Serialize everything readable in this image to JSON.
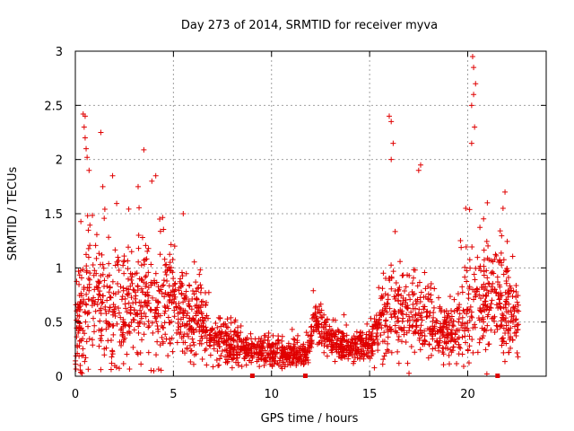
{
  "chart_data": {
    "type": "scatter",
    "title": "Day 273 of 2014, SRMTID for receiver myva",
    "xlabel": "GPS time / hours",
    "ylabel": "SRMTID / TECUs",
    "xlim": [
      0,
      24
    ],
    "ylim": [
      0,
      3
    ],
    "xticks": [
      0,
      5,
      10,
      15,
      20
    ],
    "xtick_labels": [
      "0",
      "5",
      "10",
      "15",
      "20"
    ],
    "yticks": [
      0,
      0.5,
      1,
      1.5,
      2,
      2.5,
      3
    ],
    "ytick_labels": [
      "0",
      "0.5",
      "1",
      "1.5",
      "2",
      "2.5",
      "3"
    ],
    "grid": true,
    "marker": "+",
    "series_color": "#e00000",
    "envelope": [
      {
        "x": 0.0,
        "base": 0.35,
        "spread": 0.35
      },
      {
        "x": 0.5,
        "base": 0.7,
        "spread": 0.6
      },
      {
        "x": 1.0,
        "base": 0.75,
        "spread": 0.55
      },
      {
        "x": 2.0,
        "base": 0.6,
        "spread": 0.5
      },
      {
        "x": 3.0,
        "base": 0.7,
        "spread": 0.5
      },
      {
        "x": 4.0,
        "base": 0.65,
        "spread": 0.55
      },
      {
        "x": 5.0,
        "base": 0.65,
        "spread": 0.45
      },
      {
        "x": 6.0,
        "base": 0.55,
        "spread": 0.35
      },
      {
        "x": 7.0,
        "base": 0.35,
        "spread": 0.2
      },
      {
        "x": 8.0,
        "base": 0.28,
        "spread": 0.16
      },
      {
        "x": 9.0,
        "base": 0.25,
        "spread": 0.12
      },
      {
        "x": 10.0,
        "base": 0.22,
        "spread": 0.12
      },
      {
        "x": 11.0,
        "base": 0.2,
        "spread": 0.12
      },
      {
        "x": 11.8,
        "base": 0.2,
        "spread": 0.1
      },
      {
        "x": 12.2,
        "base": 0.5,
        "spread": 0.18
      },
      {
        "x": 13.0,
        "base": 0.35,
        "spread": 0.15
      },
      {
        "x": 14.0,
        "base": 0.25,
        "spread": 0.12
      },
      {
        "x": 15.0,
        "base": 0.3,
        "spread": 0.15
      },
      {
        "x": 16.0,
        "base": 0.6,
        "spread": 0.4
      },
      {
        "x": 17.0,
        "base": 0.55,
        "spread": 0.4
      },
      {
        "x": 18.0,
        "base": 0.45,
        "spread": 0.25
      },
      {
        "x": 19.0,
        "base": 0.4,
        "spread": 0.25
      },
      {
        "x": 20.0,
        "base": 0.55,
        "spread": 0.45
      },
      {
        "x": 21.0,
        "base": 0.75,
        "spread": 0.45
      },
      {
        "x": 22.0,
        "base": 0.7,
        "spread": 0.45
      },
      {
        "x": 22.6,
        "base": 0.5,
        "spread": 0.3
      }
    ],
    "spikes": [
      {
        "x": 0.4,
        "y": 2.42
      },
      {
        "x": 0.5,
        "y": 2.4
      },
      {
        "x": 0.45,
        "y": 2.3
      },
      {
        "x": 0.5,
        "y": 2.2
      },
      {
        "x": 0.55,
        "y": 2.1
      },
      {
        "x": 0.6,
        "y": 2.02
      },
      {
        "x": 0.7,
        "y": 1.9
      },
      {
        "x": 1.3,
        "y": 2.25
      },
      {
        "x": 1.4,
        "y": 1.75
      },
      {
        "x": 1.9,
        "y": 1.85
      },
      {
        "x": 3.2,
        "y": 1.75
      },
      {
        "x": 3.9,
        "y": 1.8
      },
      {
        "x": 4.1,
        "y": 1.85
      },
      {
        "x": 4.3,
        "y": 1.45
      },
      {
        "x": 5.5,
        "y": 1.5
      },
      {
        "x": 16.0,
        "y": 2.4
      },
      {
        "x": 16.1,
        "y": 2.35
      },
      {
        "x": 16.2,
        "y": 2.15
      },
      {
        "x": 16.1,
        "y": 2.0
      },
      {
        "x": 17.6,
        "y": 1.95
      },
      {
        "x": 17.5,
        "y": 1.9
      },
      {
        "x": 20.25,
        "y": 2.95
      },
      {
        "x": 20.3,
        "y": 2.85
      },
      {
        "x": 20.4,
        "y": 2.7
      },
      {
        "x": 20.3,
        "y": 2.6
      },
      {
        "x": 20.2,
        "y": 2.5
      },
      {
        "x": 20.35,
        "y": 2.3
      },
      {
        "x": 20.2,
        "y": 2.15
      },
      {
        "x": 19.9,
        "y": 1.55
      },
      {
        "x": 21.0,
        "y": 1.6
      },
      {
        "x": 21.9,
        "y": 1.7
      },
      {
        "x": 21.8,
        "y": 1.55
      }
    ],
    "axis_markers_x": [
      9.0,
      11.7,
      21.5
    ],
    "point_count": 2200,
    "seed": 273
  }
}
